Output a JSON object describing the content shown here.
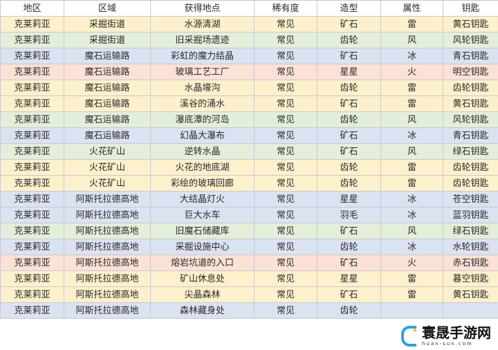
{
  "headers": [
    "地区",
    "区域",
    "获得地点",
    "稀有度",
    "造型",
    "属性",
    "钥匙"
  ],
  "rows": [
    [
      "克莱莉亚",
      "采掘街道",
      "水源清湖",
      "常见",
      "矿石",
      "雷",
      "黄石钥匙"
    ],
    [
      "克莱莉亚",
      "采掘街道",
      "旧采掘场遗迹",
      "常见",
      "齿轮",
      "风",
      "风轮钥匙"
    ],
    [
      "克莱莉亚",
      "魔石运输路",
      "彩虹的魔力结晶",
      "常见",
      "矿石",
      "冰",
      "青石钥匙"
    ],
    [
      "克莱莉亚",
      "魔石运输路",
      "玻璃工艺工厂",
      "常见",
      "星星",
      "火",
      "明空钥匙"
    ],
    [
      "克莱莉亚",
      "魔石运输路",
      "水晶壕沟",
      "常见",
      "齿轮",
      "雷",
      "齿轮钥匙"
    ],
    [
      "克莱莉亚",
      "魔石运输路",
      "溪谷的涌水",
      "常见",
      "矿石",
      "雷",
      "黄石钥匙"
    ],
    [
      "克莱莉亚",
      "魔石运输路",
      "瀑底潭的河岛",
      "常见",
      "齿轮",
      "风",
      "风轮钥匙"
    ],
    [
      "克莱莉亚",
      "魔石运输路",
      "幻晶大瀑布",
      "常见",
      "矿石",
      "冰",
      "青石钥匙"
    ],
    [
      "克莱莉亚",
      "火花矿山",
      "逆转水晶",
      "常见",
      "矿石",
      "风",
      "绿石钥匙"
    ],
    [
      "克莱莉亚",
      "火花矿山",
      "火花的地底湖",
      "常见",
      "齿轮",
      "雷",
      "齿轮钥匙"
    ],
    [
      "克莱莉亚",
      "火花矿山",
      "彩绘的玻璃回廊",
      "常见",
      "齿轮",
      "雷",
      "齿轮钥匙"
    ],
    [
      "克莱莉亚",
      "阿斯托拉德高地",
      "大结晶灯火",
      "常见",
      "星星",
      "冰",
      "苍空钥匙"
    ],
    [
      "克莱莉亚",
      "阿斯托拉德高地",
      "巨大水车",
      "常见",
      "羽毛",
      "冰",
      "蓝羽钥匙"
    ],
    [
      "克莱莉亚",
      "阿斯托拉德高地",
      "旧魔石储藏库",
      "常见",
      "矿石",
      "风",
      "绿石钥匙"
    ],
    [
      "克莱莉亚",
      "阿斯托拉德高地",
      "采掘设施中心",
      "常见",
      "齿轮",
      "冰",
      "水轮钥匙"
    ],
    [
      "克莱莉亚",
      "阿斯托拉德高地",
      "熔岩坑道的入口",
      "常见",
      "矿石",
      "火",
      "赤石钥匙"
    ],
    [
      "克莱莉亚",
      "阿斯托拉德高地",
      "矿山休息处",
      "常见",
      "星星",
      "雷",
      "暮空钥匙"
    ],
    [
      "克莱莉亚",
      "阿斯托拉德高地",
      "尖晶森林",
      "常见",
      "矿石",
      "雷",
      "黄石钥匙"
    ],
    [
      "克莱莉亚",
      "阿斯托拉德高地",
      "森林藏身处",
      "常见",
      "齿轮",
      "",
      ""
    ]
  ],
  "row_colors": {
    "雷": "#fdf0cc",
    "风": "#e3eedb",
    "冰": "#dbe2f2",
    "火": "#fbe1d6"
  },
  "watermark": {
    "name": "寰晟手游网",
    "url": "huan-sun.com"
  }
}
